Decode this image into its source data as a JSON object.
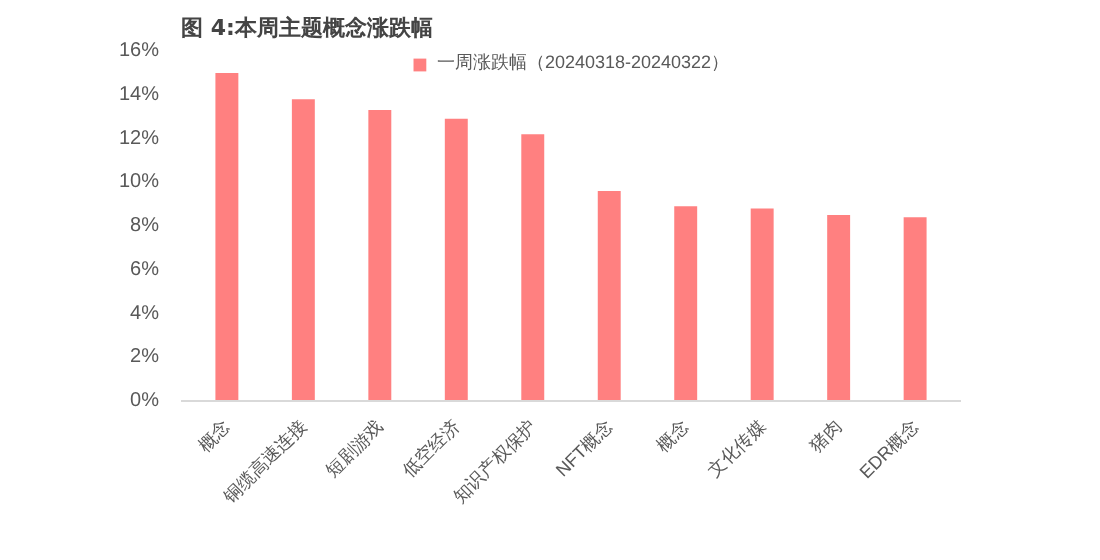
{
  "chart_data": {
    "type": "bar",
    "title": "图 4:本周主题概念涨跌幅",
    "categories": [
      "概念",
      "铜缆高速连接",
      "短剧游戏",
      "低空经济",
      "知识产权保护",
      "NFT概念",
      "概念",
      "文化传媒",
      "猪肉",
      "EDR概念"
    ],
    "series": [
      {
        "name": "一周涨跌幅（20240318-20240322）",
        "color": "#ff8080",
        "values": [
          15.0,
          13.8,
          13.3,
          12.9,
          12.2,
          9.6,
          8.9,
          8.8,
          8.5,
          8.4
        ]
      }
    ],
    "ylim": [
      0,
      16
    ],
    "yticks": [
      {
        "value": 0,
        "label": "0%"
      },
      {
        "value": 2,
        "label": "2%"
      },
      {
        "value": 4,
        "label": "4%"
      },
      {
        "value": 6,
        "label": "6%"
      },
      {
        "value": 8,
        "label": "8%"
      },
      {
        "value": 10,
        "label": "10%"
      },
      {
        "value": 12,
        "label": "12%"
      },
      {
        "value": 14,
        "label": "14%"
      },
      {
        "value": 16,
        "label": "16%"
      }
    ],
    "grid": false,
    "legend": "top"
  }
}
